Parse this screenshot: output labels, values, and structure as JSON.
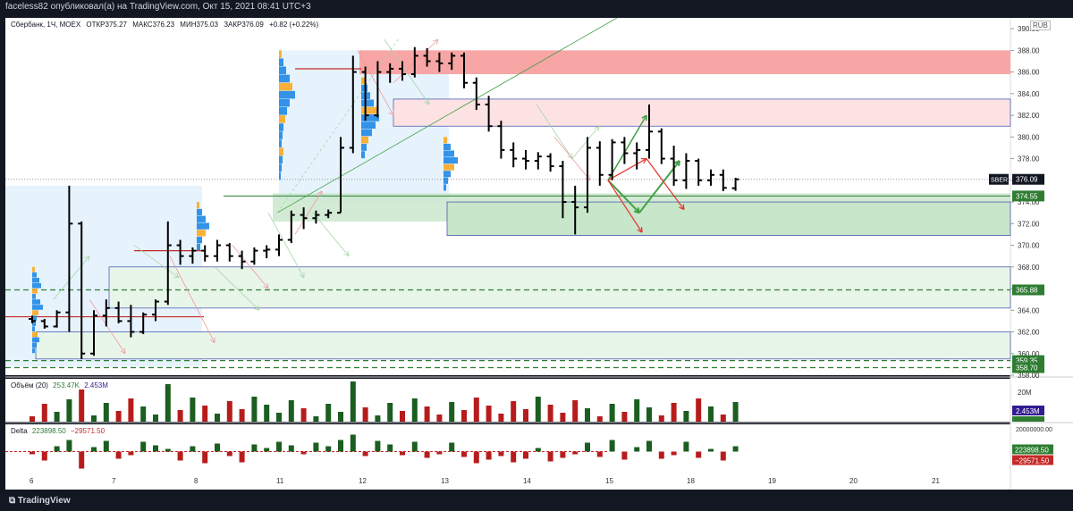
{
  "header": {
    "publisher_text": "faceless82 опубликовал(а) на TradingView.com, Окт 15, 2021 08:41 UTC+3"
  },
  "legend": {
    "symbol": "Сбербанк, 1Ч, MOEX",
    "open": "ОТКР375.27",
    "high": "МАКС376.23",
    "low": "МИН375.03",
    "close": "ЗАКР376.09",
    "change": "+0.82 (+0.22%)"
  },
  "currency": "RUB",
  "volume_legend": {
    "name": "Объём (20)",
    "v1": "253.47K",
    "v2": "2.453M"
  },
  "delta_legend": {
    "name": "Delta ... (partially hidden)",
    "v1": "223898.50",
    "v2": "−29571.50"
  },
  "logo_text": "TradingView",
  "colors": {
    "up": "#26a69a",
    "down": "#ef5350",
    "bar": "#000000",
    "green_zone": "#c8e6c9",
    "red_zone": "#f8a5a5",
    "pink_zone": "#fde2e4",
    "blue_zone": "#e3f2fd",
    "volume_up": "#1b5e20",
    "volume_down": "#b71c1c",
    "price_label_bg": "#131722",
    "green_label": "#2e7d32",
    "purple_label": "#311b92",
    "red_label": "#c62828"
  },
  "chart_data": {
    "type": "bar",
    "symbol": "Сбербанк",
    "interval": "1Ч",
    "y_axis": {
      "ticks": [
        "390.00",
        "388.00",
        "386.00",
        "384.00",
        "382.00",
        "380.00",
        "378.00",
        "376.00",
        "374.00",
        "372.00",
        "370.00",
        "368.00",
        "366.00",
        "364.00",
        "362.00",
        "360.00",
        "358.00"
      ],
      "range": [
        358,
        391
      ]
    },
    "x_axis": {
      "ticks": [
        "6",
        "7",
        "8",
        "11",
        "12",
        "13",
        "14",
        "15",
        "18",
        "19",
        "20",
        "21"
      ]
    },
    "price_labels": [
      {
        "name": "SBER",
        "value": "376.09",
        "kind": "last"
      },
      {
        "value": "374.55",
        "kind": "green-level"
      },
      {
        "value": "365.88",
        "kind": "green-level"
      },
      {
        "value": "359.35",
        "kind": "green-level"
      },
      {
        "value": "358.70",
        "kind": "green-level"
      }
    ],
    "ohlc": [
      [
        6,
        363.2,
        363.5,
        362.8,
        363.0
      ],
      [
        6.15,
        363.0,
        363.2,
        362.3,
        362.5
      ],
      [
        6.3,
        362.5,
        364.0,
        362.4,
        363.8
      ],
      [
        6.45,
        363.8,
        375.5,
        362.0,
        372.0
      ],
      [
        6.6,
        372.0,
        372.2,
        359.5,
        360.0
      ],
      [
        6.75,
        360.0,
        364.0,
        359.8,
        363.5
      ],
      [
        6.9,
        363.5,
        365.0,
        362.5,
        364.2
      ],
      [
        7.05,
        364.2,
        364.8,
        362.8,
        363.0
      ],
      [
        7.2,
        363.0,
        364.5,
        361.5,
        362.0
      ],
      [
        7.35,
        362.0,
        363.8,
        361.8,
        363.6
      ],
      [
        7.5,
        363.6,
        365.0,
        363.0,
        364.8
      ],
      [
        7.65,
        364.8,
        372.2,
        364.5,
        370.0
      ],
      [
        7.8,
        370.0,
        370.5,
        368.2,
        369.0
      ],
      [
        7.95,
        369.0,
        369.8,
        368.3,
        369.5
      ],
      [
        8.1,
        369.5,
        370.0,
        368.5,
        369.0
      ],
      [
        8.25,
        369.0,
        370.5,
        368.5,
        370.0
      ],
      [
        8.4,
        370.0,
        370.2,
        368.5,
        369.0
      ],
      [
        8.55,
        369.0,
        369.5,
        367.8,
        368.5
      ],
      [
        8.7,
        368.5,
        369.8,
        368.2,
        369.5
      ],
      [
        8.85,
        369.5,
        370.0,
        368.8,
        369.6
      ],
      [
        9.0,
        369.6,
        371.0,
        369.0,
        370.5
      ],
      [
        9.15,
        370.5,
        373.2,
        370.2,
        372.8
      ],
      [
        9.3,
        372.8,
        373.5,
        371.5,
        372.5
      ],
      [
        9.45,
        372.5,
        373.2,
        372.0,
        372.8
      ],
      [
        9.6,
        372.8,
        373.3,
        372.5,
        373.0
      ],
      [
        9.75,
        373.0,
        380.0,
        373.0,
        379.0
      ],
      [
        9.9,
        379.0,
        387.5,
        378.5,
        386.0
      ],
      [
        10.05,
        386.0,
        386.5,
        381.5,
        382.0
      ],
      [
        10.2,
        382.0,
        387.0,
        381.8,
        386.0
      ],
      [
        10.35,
        386.0,
        386.8,
        385.0,
        386.3
      ],
      [
        10.5,
        386.3,
        387.0,
        385.2,
        385.8
      ],
      [
        10.65,
        385.8,
        388.3,
        385.5,
        387.5
      ],
      [
        10.8,
        387.5,
        388.2,
        386.5,
        387.0
      ],
      [
        10.95,
        387.0,
        387.8,
        386.0,
        386.8
      ],
      [
        11.1,
        386.8,
        387.8,
        386.2,
        387.5
      ],
      [
        11.25,
        387.5,
        387.8,
        384.5,
        385.0
      ],
      [
        11.4,
        385.0,
        385.5,
        382.5,
        383.0
      ],
      [
        11.55,
        383.0,
        383.8,
        380.5,
        381.0
      ],
      [
        11.7,
        381.0,
        381.5,
        378.0,
        378.8
      ],
      [
        11.85,
        378.8,
        379.5,
        377.2,
        378.0
      ],
      [
        12.0,
        378.0,
        378.8,
        377.0,
        377.8
      ],
      [
        12.15,
        377.8,
        378.6,
        377.0,
        378.2
      ],
      [
        12.3,
        378.2,
        378.5,
        376.8,
        377.3
      ],
      [
        12.45,
        377.3,
        377.8,
        372.5,
        374.0
      ],
      [
        12.6,
        374.0,
        375.5,
        371.0,
        373.5
      ],
      [
        12.75,
        373.5,
        380.0,
        373.0,
        379.0
      ],
      [
        12.9,
        379.0,
        379.6,
        375.5,
        376.5
      ],
      [
        13.05,
        376.5,
        379.8,
        376.0,
        379.5
      ],
      [
        13.2,
        379.5,
        380.0,
        377.5,
        378.5
      ],
      [
        13.35,
        378.5,
        379.5,
        377.0,
        378.8
      ],
      [
        13.5,
        378.8,
        383.0,
        378.0,
        380.5
      ],
      [
        13.65,
        380.5,
        380.8,
        377.5,
        378.0
      ],
      [
        13.8,
        378.0,
        379.2,
        375.5,
        376.0
      ],
      [
        13.95,
        376.0,
        378.5,
        375.2,
        377.8
      ],
      [
        14.1,
        377.8,
        378.0,
        375.5,
        376.0
      ],
      [
        14.25,
        376.0,
        377.0,
        375.5,
        376.5
      ],
      [
        14.4,
        376.5,
        377.0,
        375.0,
        375.3
      ],
      [
        14.55,
        375.27,
        376.23,
        375.03,
        376.09
      ]
    ],
    "volume_series": {
      "name": "Объём (20)",
      "last": "253.47K",
      "ma": "2.453M",
      "axis_tick": "20M"
    },
    "delta_series": {
      "name": "Delta",
      "values_shown": [
        "223898.50",
        "−29571.50"
      ],
      "axis_tick": "20000000.00"
    }
  }
}
